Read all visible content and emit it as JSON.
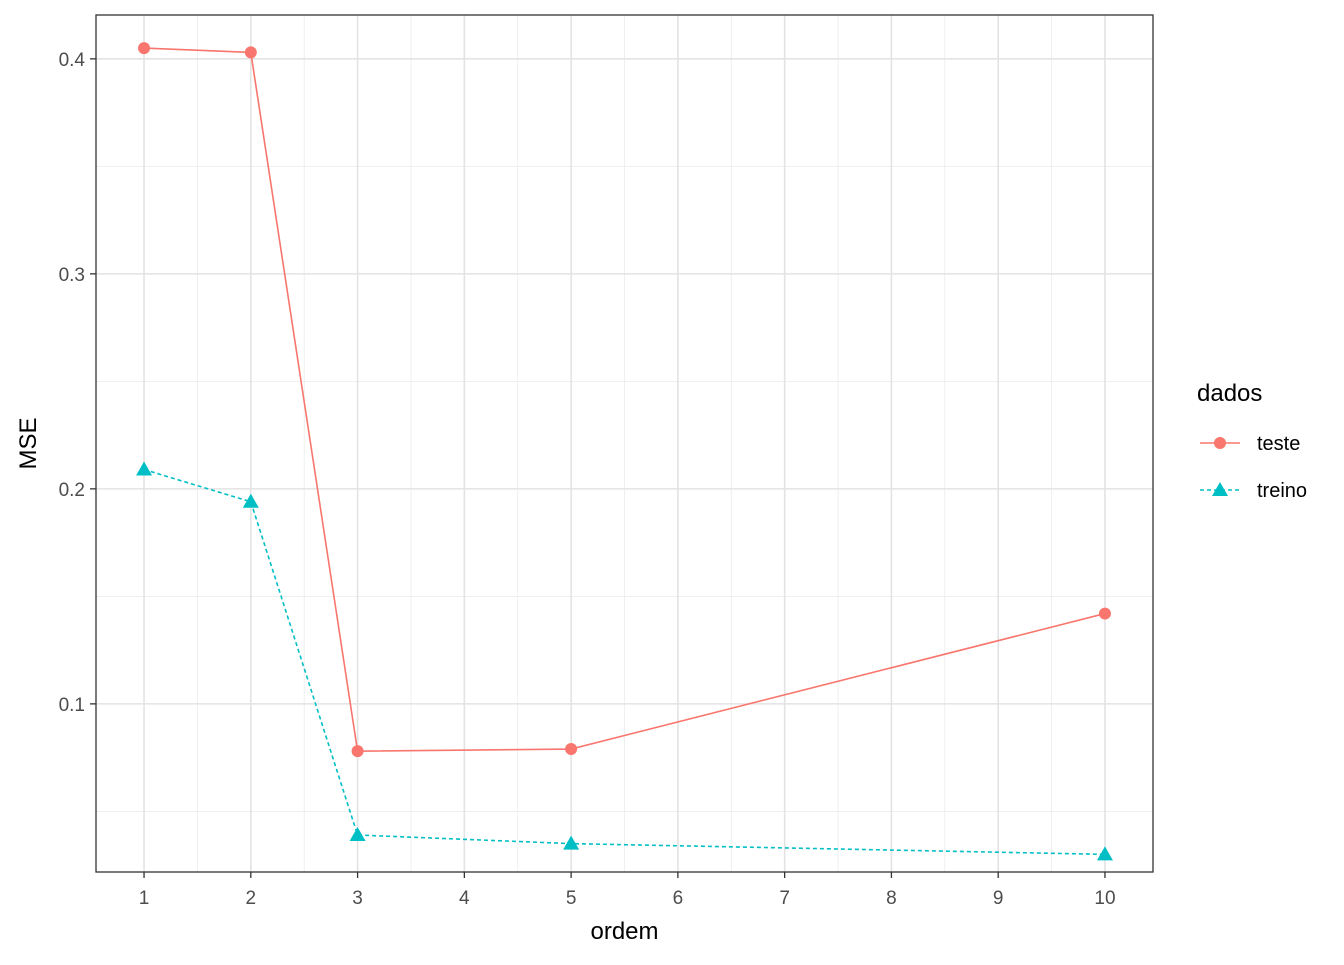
{
  "chart_data": {
    "type": "line",
    "title": "",
    "xlabel": "ordem",
    "ylabel": "MSE",
    "x_ticks": [
      1,
      2,
      3,
      4,
      5,
      6,
      7,
      8,
      9,
      10
    ],
    "y_ticks": [
      0.1,
      0.2,
      0.3,
      0.4
    ],
    "y_tick_labels": [
      "0.1",
      "0.2",
      "0.3",
      "0.4"
    ],
    "xlim": [
      0.55,
      10.45
    ],
    "ylim": [
      0.0218,
      0.4204
    ],
    "grid": true,
    "legend": {
      "title": "dados",
      "position": "right"
    },
    "series": [
      {
        "name": "teste",
        "color": "#F8766D",
        "marker": "circle",
        "linestyle": "solid",
        "x": [
          1,
          2,
          3,
          5,
          10
        ],
        "y": [
          0.405,
          0.403,
          0.078,
          0.079,
          0.142
        ]
      },
      {
        "name": "treino",
        "color": "#00BFC4",
        "marker": "triangle",
        "linestyle": "dashed",
        "x": [
          1,
          2,
          3,
          5,
          10
        ],
        "y": [
          0.209,
          0.194,
          0.039,
          0.035,
          0.03
        ]
      }
    ]
  }
}
